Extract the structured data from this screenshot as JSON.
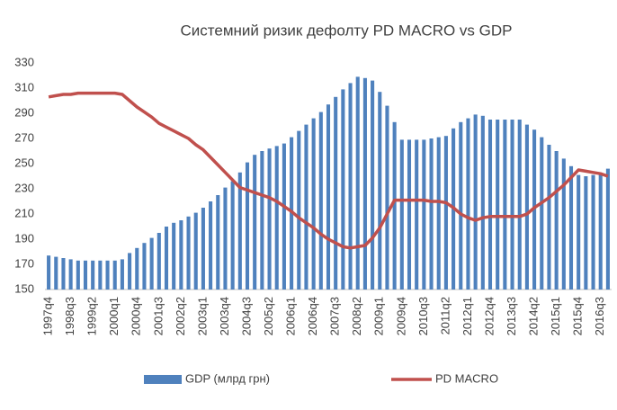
{
  "chart_data": {
    "type": "bar+line",
    "title": "Системний ризик дефолту PD MACRO vs GDP",
    "categories": [
      "1997q4",
      null,
      null,
      "1998q3",
      null,
      null,
      "1999q2",
      null,
      null,
      "2000q1",
      null,
      null,
      "2000q4",
      null,
      null,
      "2001q3",
      null,
      null,
      "2002q2",
      null,
      null,
      "2003q1",
      null,
      null,
      "2003q4",
      null,
      null,
      "2004q3",
      null,
      null,
      "2005q2",
      null,
      null,
      "2006q1",
      null,
      null,
      "2006q4",
      null,
      null,
      "2007q3",
      null,
      null,
      "2008q2",
      null,
      null,
      "2009q1",
      null,
      null,
      "2009q4",
      null,
      null,
      "2010q3",
      null,
      null,
      "2011q2",
      null,
      null,
      "2012q1",
      null,
      null,
      "2012q4",
      null,
      null,
      "2013q3",
      null,
      null,
      "2014q2",
      null,
      null,
      "2015q1",
      null,
      null,
      "2015q4",
      null,
      null,
      "2016q3",
      null
    ],
    "series": [
      {
        "name": "GDP (млрд грн)",
        "type": "bar",
        "color": "#4f81bd",
        "values": [
          177,
          176,
          175,
          174,
          173,
          173,
          173,
          173,
          173,
          173,
          174,
          179,
          183,
          187,
          191,
          195,
          200,
          203,
          205,
          208,
          211,
          215,
          220,
          225,
          231,
          236,
          243,
          251,
          257,
          260,
          262,
          264,
          266,
          271,
          276,
          281,
          286,
          291,
          297,
          303,
          309,
          314,
          319,
          318,
          316,
          307,
          296,
          283,
          269,
          269,
          269,
          269,
          270,
          271,
          272,
          278,
          283,
          286,
          289,
          288,
          285,
          285,
          285,
          285,
          285,
          281,
          277,
          271,
          265,
          260,
          254,
          248,
          241,
          240,
          241,
          242,
          246
        ]
      },
      {
        "name": "PD MACRO",
        "type": "line",
        "color": "#c0504d",
        "values": [
          303,
          304,
          305,
          305,
          306,
          306,
          306,
          306,
          306,
          306,
          305,
          300,
          295,
          291,
          287,
          282,
          279,
          276,
          273,
          270,
          265,
          261,
          255,
          249,
          243,
          237,
          231,
          229,
          227,
          225,
          223,
          220,
          216,
          212,
          207,
          203,
          199,
          194,
          190,
          187,
          184,
          183,
          184,
          185,
          191,
          199,
          210,
          221,
          221,
          221,
          221,
          221,
          220,
          220,
          219,
          215,
          210,
          207,
          205,
          207,
          208,
          208,
          208,
          208,
          208,
          210,
          215,
          219,
          223,
          228,
          233,
          239,
          245,
          244,
          243,
          242,
          240
        ]
      }
    ],
    "ylim": [
      150,
      330
    ],
    "yticks": [
      150,
      170,
      190,
      210,
      230,
      250,
      270,
      290,
      310,
      330
    ],
    "grid": false,
    "legend": "bottom"
  }
}
